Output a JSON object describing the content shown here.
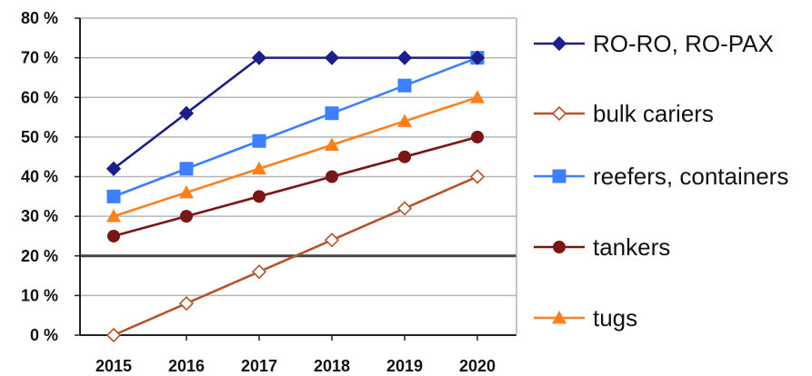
{
  "chart_data": {
    "type": "line",
    "title": "",
    "xlabel": "",
    "ylabel": "",
    "x": [
      "2015",
      "2016",
      "2017",
      "2018",
      "2019",
      "2020"
    ],
    "ylim": [
      0,
      80
    ],
    "yticks": [
      0,
      10,
      20,
      30,
      40,
      50,
      60,
      70,
      80
    ],
    "ytick_labels": [
      "0 %",
      "10 %",
      "20 %",
      "30 %",
      "40 %",
      "50 %",
      "60 %",
      "70 %",
      "80 %"
    ],
    "grid": "horizontal",
    "emphasized_gridline": 20,
    "legend_position": "right",
    "series": [
      {
        "name": "RO-RO, RO-PAX",
        "values": [
          42,
          56,
          70,
          70,
          70,
          70
        ],
        "color": "#1b1f8a",
        "marker": "diamond-filled"
      },
      {
        "name": "bulk cariers",
        "values": [
          0,
          8,
          16,
          24,
          32,
          40
        ],
        "color": "#b5532d",
        "marker": "diamond-open"
      },
      {
        "name": "reefers, containers",
        "values": [
          35,
          42,
          49,
          56,
          63,
          70
        ],
        "color": "#3d7fff",
        "marker": "square"
      },
      {
        "name": "tankers",
        "values": [
          25,
          30,
          35,
          40,
          45,
          50
        ],
        "color": "#7a1616",
        "marker": "circle"
      },
      {
        "name": "tugs",
        "values": [
          30,
          36,
          42,
          48,
          54,
          60
        ],
        "color": "#ff7f1a",
        "marker": "triangle"
      }
    ]
  }
}
